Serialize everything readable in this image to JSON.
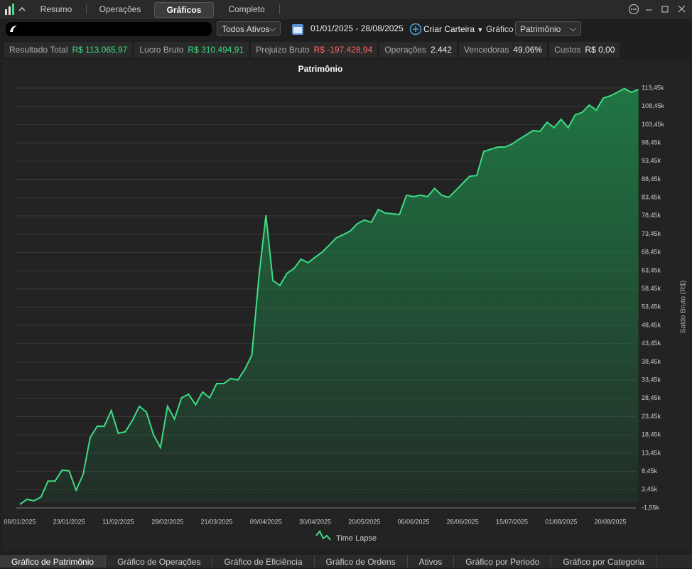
{
  "tabs": [
    "Resumo",
    "Operações",
    "Gráficos",
    "Completo"
  ],
  "toolbar": {
    "asset_filter": "Todos Ativos",
    "date_range": "01/01/2025 - 28/08/2025",
    "create_wallet": "Criar Carteira",
    "chart_label": "Gráfico",
    "chart_select": "Patrimônio"
  },
  "stats": [
    {
      "label": "Resultado Total",
      "value": "R$ 113.065,97"
    },
    {
      "label": "Lucro Bruto",
      "value": "R$ 310.494,91"
    },
    {
      "label": "Prejuizo Bruto",
      "value": "R$ -197.428,94"
    },
    {
      "label": "Operações",
      "value": "2.442"
    },
    {
      "label": "Vencedoras",
      "value": "49,06%"
    },
    {
      "label": "Custos",
      "value": "R$ 0,00"
    }
  ],
  "chart_data": {
    "type": "area",
    "title": "Patrimônio",
    "y_label": "Saldo Bruto (R$)",
    "categories": [
      "06/01/2025",
      null,
      null,
      null,
      null,
      null,
      null,
      "23/01/2025",
      null,
      null,
      null,
      null,
      null,
      null,
      "11/02/2025",
      null,
      null,
      null,
      null,
      null,
      null,
      "28/02/2025",
      null,
      null,
      null,
      null,
      null,
      null,
      "21/03/2025",
      null,
      null,
      null,
      null,
      null,
      null,
      "09/04/2025",
      null,
      null,
      null,
      null,
      null,
      null,
      "30/04/2025",
      null,
      null,
      null,
      null,
      null,
      null,
      "20/05/2025",
      null,
      null,
      null,
      null,
      null,
      null,
      "06/06/2025",
      null,
      null,
      null,
      null,
      null,
      null,
      "26/06/2025",
      null,
      null,
      null,
      null,
      null,
      null,
      "15/07/2025",
      null,
      null,
      null,
      null,
      null,
      null,
      "01/08/2025",
      null,
      null,
      null,
      null,
      null,
      null,
      "20/08/2025",
      null,
      null,
      null,
      null
    ],
    "series": [
      {
        "name": "Time Lapse",
        "color": "#3ddc84",
        "values": [
          -600,
          800,
          400,
          1400,
          5800,
          5800,
          8800,
          8600,
          3300,
          7600,
          17700,
          20800,
          20800,
          25100,
          18900,
          19300,
          22400,
          26300,
          24700,
          18500,
          15000,
          26300,
          22800,
          28600,
          29600,
          26700,
          30200,
          28600,
          32500,
          32500,
          33900,
          33500,
          36400,
          40300,
          61700,
          78600,
          60700,
          59400,
          62700,
          64000,
          66600,
          65600,
          67100,
          68500,
          70400,
          72400,
          73300,
          74300,
          76300,
          77300,
          76700,
          80200,
          79200,
          79000,
          78800,
          84100,
          83700,
          84100,
          83700,
          86000,
          84100,
          83500,
          85400,
          87400,
          89300,
          89500,
          96100,
          96700,
          97300,
          97300,
          98100,
          99400,
          100600,
          101800,
          101600,
          104100,
          102600,
          104900,
          102600,
          106100,
          106800,
          108800,
          107400,
          110700,
          111300,
          112300,
          113300,
          112300,
          113100
        ]
      }
    ],
    "ylim": [
      -1550,
      113450
    ],
    "yticks": [
      {
        "value": -1550,
        "label": "-1,55k"
      },
      {
        "value": 3450,
        "label": "3,45k"
      },
      {
        "value": 8450,
        "label": "8,45k"
      },
      {
        "value": 13450,
        "label": "13,45k"
      },
      {
        "value": 18450,
        "label": "18,45k"
      },
      {
        "value": 23450,
        "label": "23,45k"
      },
      {
        "value": 28450,
        "label": "28,45k"
      },
      {
        "value": 33450,
        "label": "33,45k"
      },
      {
        "value": 38450,
        "label": "38,45k"
      },
      {
        "value": 43450,
        "label": "43,45k"
      },
      {
        "value": 48450,
        "label": "48,45k"
      },
      {
        "value": 53450,
        "label": "53,45k"
      },
      {
        "value": 58450,
        "label": "58,45k"
      },
      {
        "value": 63450,
        "label": "63,45k"
      },
      {
        "value": 68450,
        "label": "68,45k"
      },
      {
        "value": 73450,
        "label": "73,45k"
      },
      {
        "value": 78450,
        "label": "78,45k"
      },
      {
        "value": 83450,
        "label": "83,45k"
      },
      {
        "value": 88450,
        "label": "88,45k"
      },
      {
        "value": 93450,
        "label": "93,45k"
      },
      {
        "value": 98450,
        "label": "98,45k"
      },
      {
        "value": 103450,
        "label": "103,45k"
      },
      {
        "value": 108450,
        "label": "108,45k"
      },
      {
        "value": 113450,
        "label": "113,45k"
      }
    ],
    "grid": true
  },
  "bottom_tabs": [
    "Gráfico de Patrimônio",
    "Gráfico de Operações",
    "Gráfico de Eficiência",
    "Gráfico de Ordens",
    "Ativos",
    "Gráfico por Periodo",
    "Gráfico por Categoria"
  ]
}
